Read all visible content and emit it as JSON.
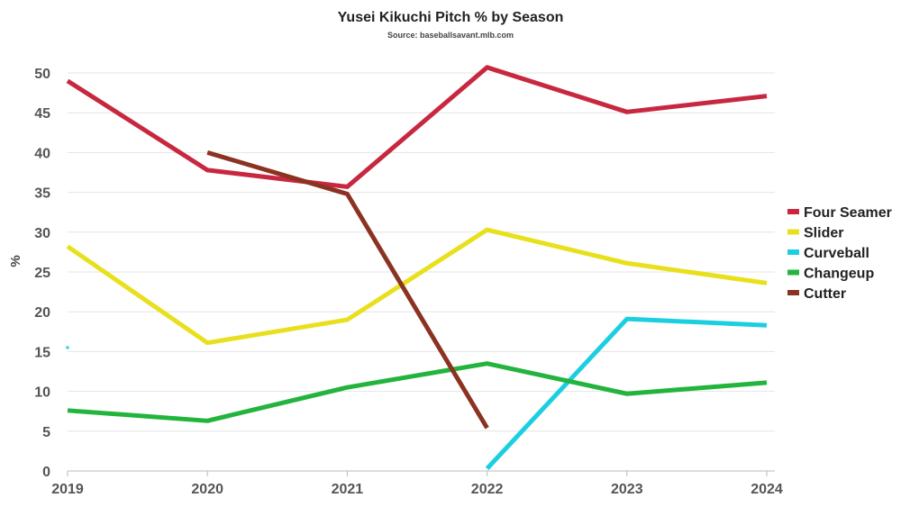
{
  "chart_data": {
    "type": "line",
    "title": "Yusei Kikuchi Pitch % by Season",
    "subtitle": "Source: baseballsavant.mlb.com",
    "xlabel": "",
    "ylabel": "%",
    "x": [
      "2019",
      "2020",
      "2021",
      "2022",
      "2023",
      "2024"
    ],
    "ylim": [
      0,
      50
    ],
    "yticks": [
      0,
      5,
      10,
      15,
      20,
      25,
      30,
      35,
      40,
      45,
      50
    ],
    "grid": true,
    "legend_position": "right",
    "series": [
      {
        "name": "Four Seamer",
        "color": "#c8283f",
        "values": [
          49.0,
          37.8,
          35.7,
          50.7,
          45.1,
          47.1
        ]
      },
      {
        "name": "Slider",
        "color": "#e8e01c",
        "values": [
          28.2,
          16.1,
          19.0,
          30.3,
          26.1,
          23.6
        ]
      },
      {
        "name": "Curveball",
        "color": "#1ccfe0",
        "values": [
          15.5,
          null,
          null,
          0.3,
          19.1,
          18.3
        ]
      },
      {
        "name": "Changeup",
        "color": "#22b43c",
        "values": [
          7.6,
          6.3,
          10.5,
          13.5,
          9.7,
          11.1
        ]
      },
      {
        "name": "Cutter",
        "color": "#8b3222",
        "values": [
          null,
          40.0,
          34.8,
          5.4,
          null,
          null
        ]
      }
    ]
  }
}
